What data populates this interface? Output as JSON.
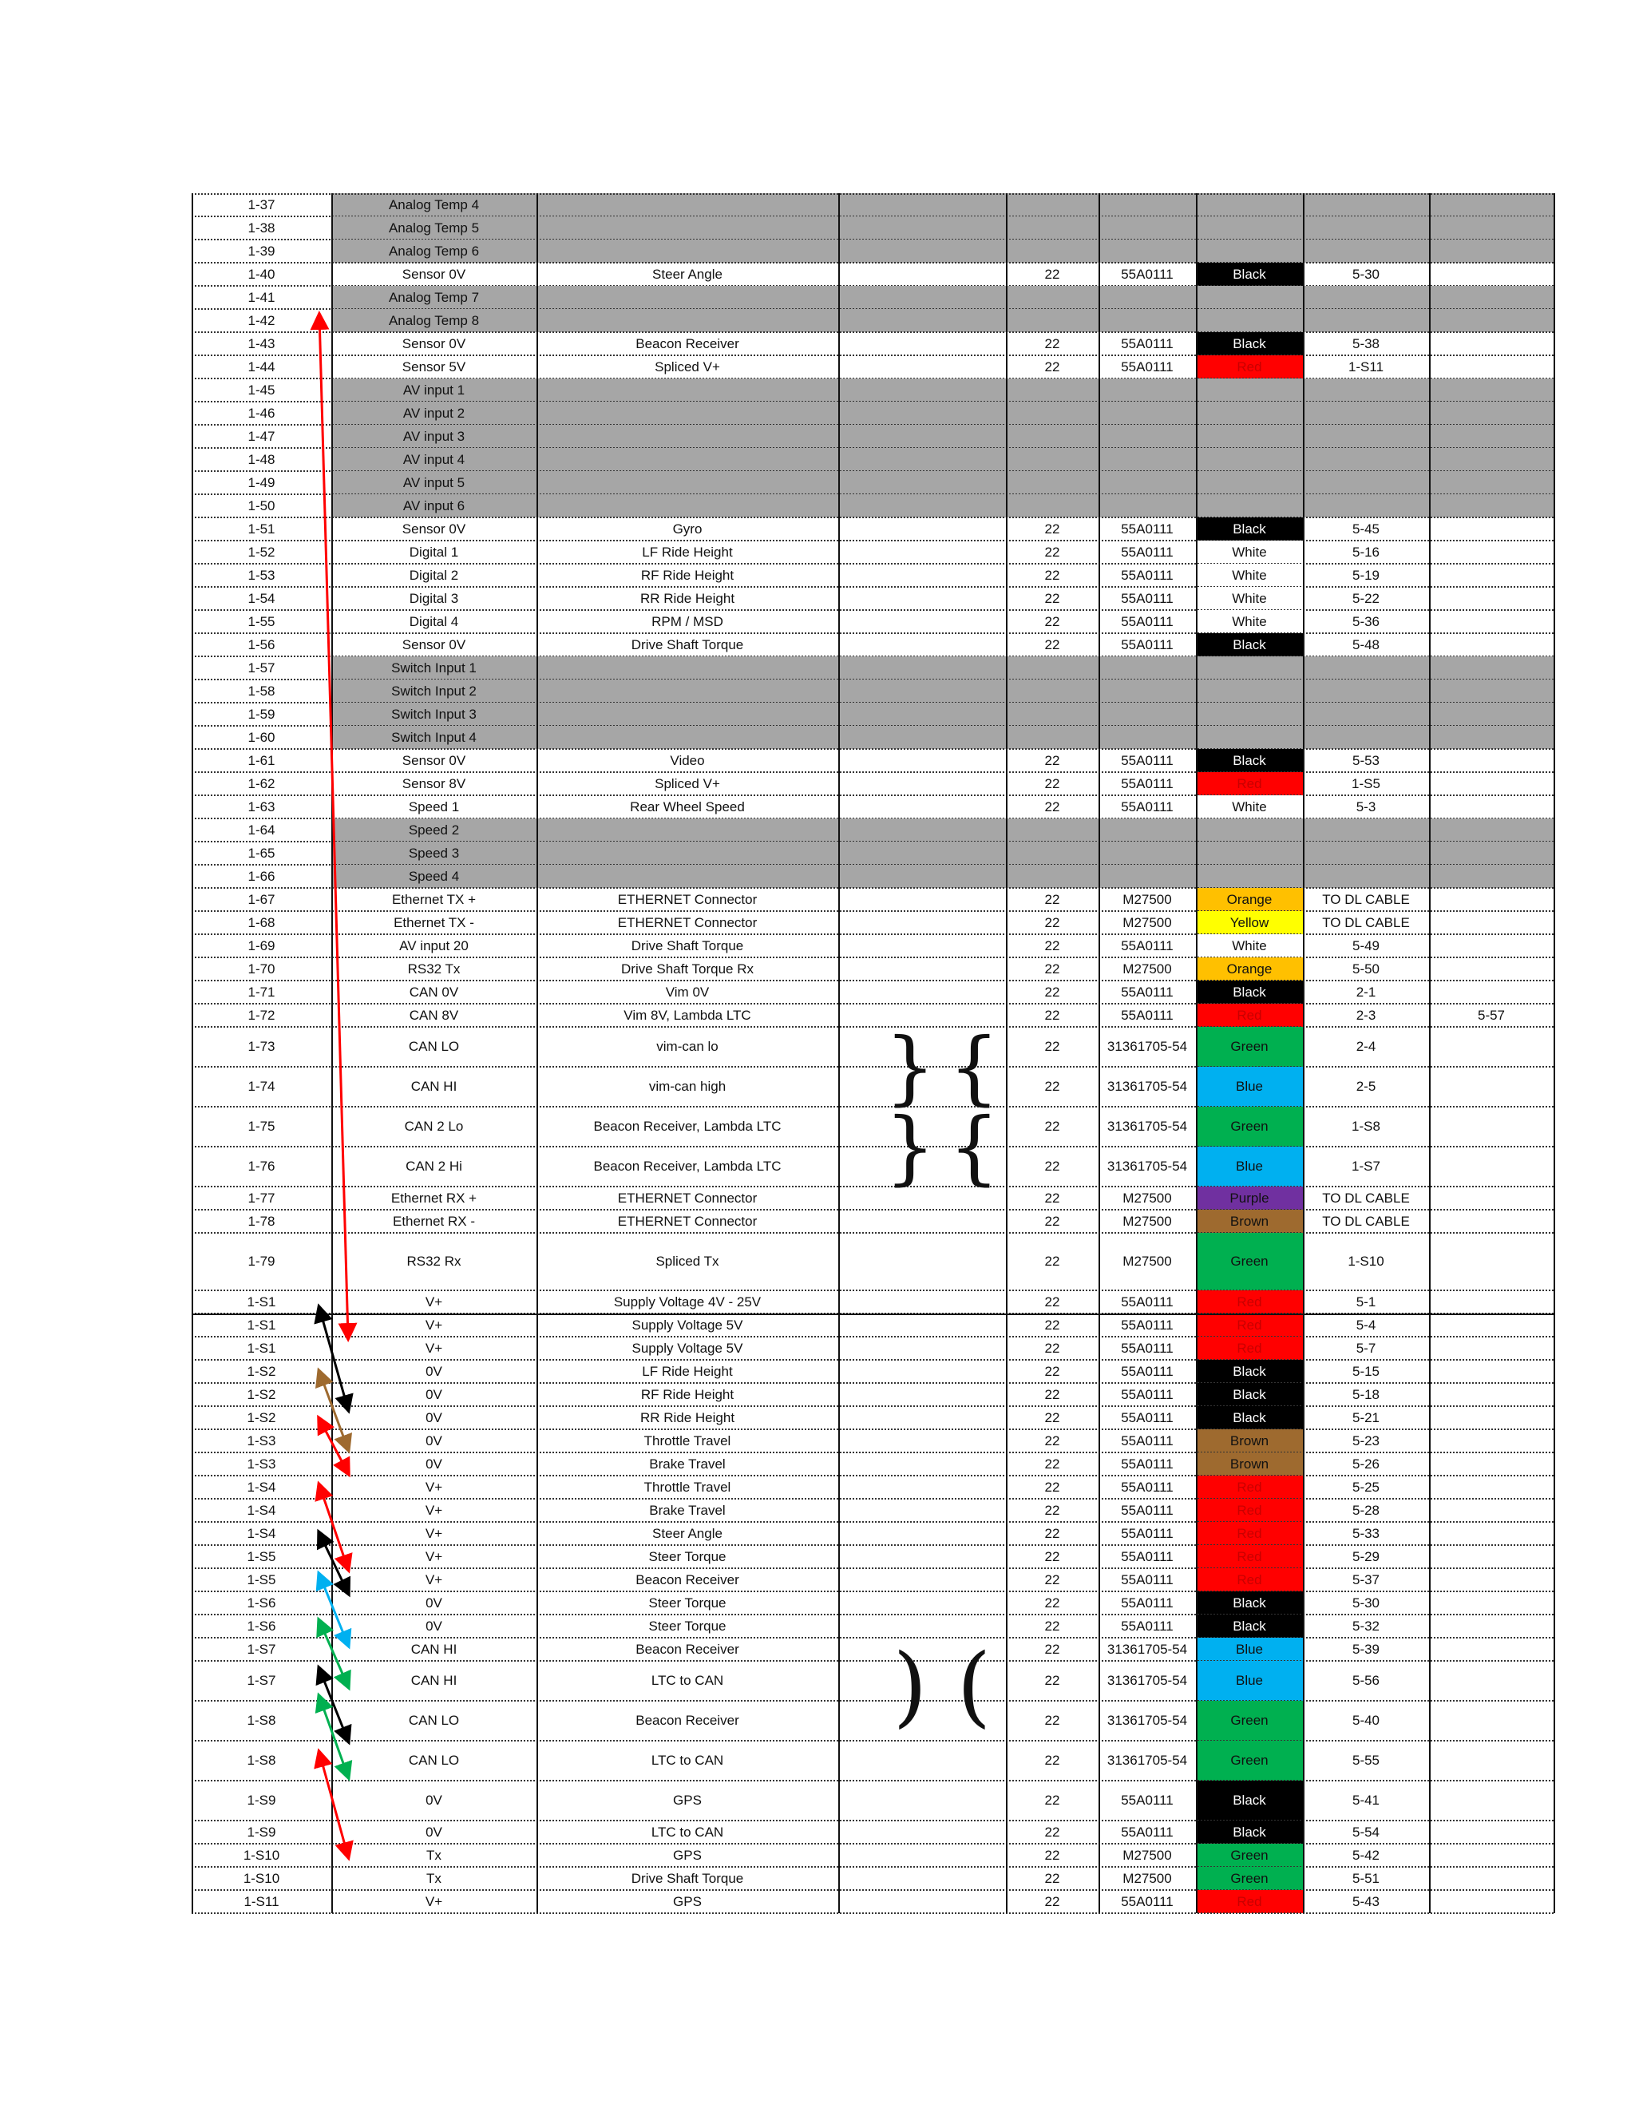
{
  "colors": {
    "Black": {
      "bg": "#000000",
      "fg": "#ffffff"
    },
    "White": {
      "bg": "#ffffff",
      "fg": "#111111"
    },
    "Red": {
      "bg": "#ff0000",
      "fg": "#c80000"
    },
    "Orange": {
      "bg": "#ffc000",
      "fg": "#111111"
    },
    "Yellow": {
      "bg": "#ffff00",
      "fg": "#111111"
    },
    "Green": {
      "bg": "#00b050",
      "fg": "#111111"
    },
    "Blue": {
      "bg": "#00b0f0",
      "fg": "#111111"
    },
    "Purple": {
      "bg": "#7030a0",
      "fg": "#111111"
    },
    "Brown": {
      "bg": "#9e6a2f",
      "fg": "#111111"
    }
  },
  "rows": [
    {
      "pin": "1-37",
      "func": "Analog Temp 4",
      "dest": "",
      "gauge": "",
      "part": "",
      "color": "",
      "to": "",
      "extra": "",
      "gray": true
    },
    {
      "pin": "1-38",
      "func": "Analog Temp 5",
      "dest": "",
      "gauge": "",
      "part": "",
      "color": "",
      "to": "",
      "extra": "",
      "gray": true
    },
    {
      "pin": "1-39",
      "func": "Analog Temp 6",
      "dest": "",
      "gauge": "",
      "part": "",
      "color": "",
      "to": "",
      "extra": "",
      "gray": true
    },
    {
      "pin": "1-40",
      "func": "Sensor 0V",
      "dest": "Steer Angle",
      "gauge": "22",
      "part": "55A0111",
      "color": "Black",
      "to": "5-30",
      "extra": "",
      "gray": false
    },
    {
      "pin": "1-41",
      "func": "Analog Temp 7",
      "dest": "",
      "gauge": "",
      "part": "",
      "color": "",
      "to": "",
      "extra": "",
      "gray": true
    },
    {
      "pin": "1-42",
      "func": "Analog Temp 8",
      "dest": "",
      "gauge": "",
      "part": "",
      "color": "",
      "to": "",
      "extra": "",
      "gray": true
    },
    {
      "pin": "1-43",
      "func": "Sensor 0V",
      "dest": "Beacon Receiver",
      "gauge": "22",
      "part": "55A0111",
      "color": "Black",
      "to": "5-38",
      "extra": "",
      "gray": false
    },
    {
      "pin": "1-44",
      "func": "Sensor 5V",
      "dest": "Spliced V+",
      "gauge": "22",
      "part": "55A0111",
      "color": "Red",
      "to": "1-S11",
      "extra": "",
      "gray": false
    },
    {
      "pin": "1-45",
      "func": "AV input 1",
      "dest": "",
      "gauge": "",
      "part": "",
      "color": "",
      "to": "",
      "extra": "",
      "gray": true
    },
    {
      "pin": "1-46",
      "func": "AV input 2",
      "dest": "",
      "gauge": "",
      "part": "",
      "color": "",
      "to": "",
      "extra": "",
      "gray": true
    },
    {
      "pin": "1-47",
      "func": "AV input 3",
      "dest": "",
      "gauge": "",
      "part": "",
      "color": "",
      "to": "",
      "extra": "",
      "gray": true
    },
    {
      "pin": "1-48",
      "func": "AV input 4",
      "dest": "",
      "gauge": "",
      "part": "",
      "color": "",
      "to": "",
      "extra": "",
      "gray": true
    },
    {
      "pin": "1-49",
      "func": "AV input 5",
      "dest": "",
      "gauge": "",
      "part": "",
      "color": "",
      "to": "",
      "extra": "",
      "gray": true
    },
    {
      "pin": "1-50",
      "func": "AV input 6",
      "dest": "",
      "gauge": "",
      "part": "",
      "color": "",
      "to": "",
      "extra": "",
      "gray": true
    },
    {
      "pin": "1-51",
      "func": "Sensor 0V",
      "dest": "Gyro",
      "gauge": "22",
      "part": "55A0111",
      "color": "Black",
      "to": "5-45",
      "extra": "",
      "gray": false
    },
    {
      "pin": "1-52",
      "func": "Digital 1",
      "dest": "LF Ride Height",
      "gauge": "22",
      "part": "55A0111",
      "color": "White",
      "to": "5-16",
      "extra": "",
      "gray": false
    },
    {
      "pin": "1-53",
      "func": "Digital 2",
      "dest": "RF Ride Height",
      "gauge": "22",
      "part": "55A0111",
      "color": "White",
      "to": "5-19",
      "extra": "",
      "gray": false
    },
    {
      "pin": "1-54",
      "func": "Digital 3",
      "dest": "RR Ride Height",
      "gauge": "22",
      "part": "55A0111",
      "color": "White",
      "to": "5-22",
      "extra": "",
      "gray": false
    },
    {
      "pin": "1-55",
      "func": "Digital 4",
      "dest": "RPM / MSD",
      "gauge": "22",
      "part": "55A0111",
      "color": "White",
      "to": "5-36",
      "extra": "",
      "gray": false
    },
    {
      "pin": "1-56",
      "func": "Sensor 0V",
      "dest": "Drive Shaft Torque",
      "gauge": "22",
      "part": "55A0111",
      "color": "Black",
      "to": "5-48",
      "extra": "",
      "gray": false
    },
    {
      "pin": "1-57",
      "func": "Switch Input 1",
      "dest": "",
      "gauge": "",
      "part": "",
      "color": "",
      "to": "",
      "extra": "",
      "gray": true
    },
    {
      "pin": "1-58",
      "func": "Switch Input 2",
      "dest": "",
      "gauge": "",
      "part": "",
      "color": "",
      "to": "",
      "extra": "",
      "gray": true
    },
    {
      "pin": "1-59",
      "func": "Switch Input 3",
      "dest": "",
      "gauge": "",
      "part": "",
      "color": "",
      "to": "",
      "extra": "",
      "gray": true
    },
    {
      "pin": "1-60",
      "func": "Switch Input 4",
      "dest": "",
      "gauge": "",
      "part": "",
      "color": "",
      "to": "",
      "extra": "",
      "gray": true
    },
    {
      "pin": "1-61",
      "func": "Sensor 0V",
      "dest": "Video",
      "gauge": "22",
      "part": "55A0111",
      "color": "Black",
      "to": "5-53",
      "extra": "",
      "gray": false
    },
    {
      "pin": "1-62",
      "func": "Sensor 8V",
      "dest": "Spliced V+",
      "gauge": "22",
      "part": "55A0111",
      "color": "Red",
      "to": "1-S5",
      "extra": "",
      "gray": false
    },
    {
      "pin": "1-63",
      "func": "Speed 1",
      "dest": "Rear Wheel Speed",
      "gauge": "22",
      "part": "55A0111",
      "color": "White",
      "to": "5-3",
      "extra": "",
      "gray": false
    },
    {
      "pin": "1-64",
      "func": "Speed 2",
      "dest": "",
      "gauge": "",
      "part": "",
      "color": "",
      "to": "",
      "extra": "",
      "gray": true
    },
    {
      "pin": "1-65",
      "func": "Speed 3",
      "dest": "",
      "gauge": "",
      "part": "",
      "color": "",
      "to": "",
      "extra": "",
      "gray": true
    },
    {
      "pin": "1-66",
      "func": "Speed 4",
      "dest": "",
      "gauge": "",
      "part": "",
      "color": "",
      "to": "",
      "extra": "",
      "gray": true
    },
    {
      "pin": "1-67",
      "func": "Ethernet TX +",
      "dest": "ETHERNET Connector",
      "gauge": "22",
      "part": "M27500",
      "color": "Orange",
      "to": "TO DL CABLE",
      "extra": "",
      "gray": false
    },
    {
      "pin": "1-68",
      "func": "Ethernet TX -",
      "dest": "ETHERNET Connector",
      "gauge": "22",
      "part": "M27500",
      "color": "Yellow",
      "to": "TO DL CABLE",
      "extra": "",
      "gray": false
    },
    {
      "pin": "1-69",
      "func": "AV input 20",
      "dest": "Drive Shaft Torque",
      "gauge": "22",
      "part": "55A0111",
      "color": "White",
      "to": "5-49",
      "extra": "",
      "gray": false
    },
    {
      "pin": "1-70",
      "func": "RS32 Tx",
      "dest": "Drive Shaft Torque Rx",
      "gauge": "22",
      "part": "M27500",
      "color": "Orange",
      "to": "5-50",
      "extra": "",
      "gray": false
    },
    {
      "pin": "1-71",
      "func": "CAN 0V",
      "dest": "Vim  0V",
      "gauge": "22",
      "part": "55A0111",
      "color": "Black",
      "to": "2-1",
      "extra": "",
      "gray": false
    },
    {
      "pin": "1-72",
      "func": "CAN 8V",
      "dest": "Vim 8V, Lambda LTC",
      "gauge": "22",
      "part": "55A0111",
      "color": "Red",
      "to": "2-3",
      "extra": "5-57",
      "gray": false
    },
    {
      "pin": "1-73",
      "func": "CAN LO",
      "dest": "vim-can  lo",
      "gauge": "22",
      "part": "31361705-54",
      "color": "Green",
      "to": "2-4",
      "extra": "",
      "gray": false
    },
    {
      "pin": "1-74",
      "func": "CAN HI",
      "dest": "vim-can  high",
      "gauge": "22",
      "part": "31361705-54",
      "color": "Blue",
      "to": "2-5",
      "extra": "",
      "gray": false
    },
    {
      "pin": "1-75",
      "func": "CAN 2 Lo",
      "dest": "Beacon Receiver, Lambda LTC",
      "gauge": "22",
      "part": "31361705-54",
      "color": "Green",
      "to": "1-S8",
      "extra": "",
      "gray": false
    },
    {
      "pin": "1-76",
      "func": "CAN 2 Hi",
      "dest": "Beacon Receiver, Lambda LTC",
      "gauge": "22",
      "part": "31361705-54",
      "color": "Blue",
      "to": "1-S7",
      "extra": "",
      "gray": false
    },
    {
      "pin": "1-77",
      "func": "Ethernet RX +",
      "dest": "ETHERNET Connector",
      "gauge": "22",
      "part": "M27500",
      "color": "Purple",
      "to": "TO DL CABLE",
      "extra": "",
      "gray": false
    },
    {
      "pin": "1-78",
      "func": "Ethernet RX -",
      "dest": "ETHERNET Connector",
      "gauge": "22",
      "part": "M27500",
      "color": "Brown",
      "to": "TO DL CABLE",
      "extra": "",
      "gray": false
    },
    {
      "pin": "1-79",
      "func": "RS32 Rx",
      "dest": "Spliced Tx",
      "gauge": "22",
      "part": "M27500",
      "color": "Green",
      "to": "1-S10",
      "extra": "",
      "gray": false
    },
    {
      "pin": "1-S1",
      "func": "V+",
      "dest": "Supply Voltage 4V - 25V",
      "gauge": "22",
      "part": "55A0111",
      "color": "Red",
      "to": "5-1",
      "extra": "",
      "gray": false
    },
    {
      "pin": "1-S1",
      "func": "V+",
      "dest": "Supply Voltage 5V",
      "gauge": "22",
      "part": "55A0111",
      "color": "Red",
      "to": "5-4",
      "extra": "",
      "gray": false
    },
    {
      "pin": "1-S1",
      "func": "V+",
      "dest": "Supply Voltage 5V",
      "gauge": "22",
      "part": "55A0111",
      "color": "Red",
      "to": "5-7",
      "extra": "",
      "gray": false
    },
    {
      "pin": "1-S2",
      "func": "0V",
      "dest": "LF Ride Height",
      "gauge": "22",
      "part": "55A0111",
      "color": "Black",
      "to": "5-15",
      "extra": "",
      "gray": false
    },
    {
      "pin": "1-S2",
      "func": "0V",
      "dest": "RF Ride Height",
      "gauge": "22",
      "part": "55A0111",
      "color": "Black",
      "to": "5-18",
      "extra": "",
      "gray": false
    },
    {
      "pin": "1-S2",
      "func": "0V",
      "dest": "RR Ride Height",
      "gauge": "22",
      "part": "55A0111",
      "color": "Black",
      "to": "5-21",
      "extra": "",
      "gray": false
    },
    {
      "pin": "1-S3",
      "func": "0V",
      "dest": "Throttle Travel",
      "gauge": "22",
      "part": "55A0111",
      "color": "Brown",
      "to": "5-23",
      "extra": "",
      "gray": false
    },
    {
      "pin": "1-S3",
      "func": "0V",
      "dest": "Brake Travel",
      "gauge": "22",
      "part": "55A0111",
      "color": "Brown",
      "to": "5-26",
      "extra": "",
      "gray": false
    },
    {
      "pin": "1-S4",
      "func": "V+",
      "dest": "Throttle Travel",
      "gauge": "22",
      "part": "55A0111",
      "color": "Red",
      "to": "5-25",
      "extra": "",
      "gray": false
    },
    {
      "pin": "1-S4",
      "func": "V+",
      "dest": "Brake Travel",
      "gauge": "22",
      "part": "55A0111",
      "color": "Red",
      "to": "5-28",
      "extra": "",
      "gray": false
    },
    {
      "pin": "1-S4",
      "func": "V+",
      "dest": "Steer Angle",
      "gauge": "22",
      "part": "55A0111",
      "color": "Red",
      "to": "5-33",
      "extra": "",
      "gray": false
    },
    {
      "pin": "1-S5",
      "func": "V+",
      "dest": "Steer Torque",
      "gauge": "22",
      "part": "55A0111",
      "color": "Red",
      "to": "5-29",
      "extra": "",
      "gray": false
    },
    {
      "pin": "1-S5",
      "func": "V+",
      "dest": "Beacon Receiver",
      "gauge": "22",
      "part": "55A0111",
      "color": "Red",
      "to": "5-37",
      "extra": "",
      "gray": false
    },
    {
      "pin": "1-S6",
      "func": "0V",
      "dest": "Steer Torque",
      "gauge": "22",
      "part": "55A0111",
      "color": "Black",
      "to": "5-30",
      "extra": "",
      "gray": false
    },
    {
      "pin": "1-S6",
      "func": "0V",
      "dest": "Steer Torque",
      "gauge": "22",
      "part": "55A0111",
      "color": "Black",
      "to": "5-32",
      "extra": "",
      "gray": false
    },
    {
      "pin": "1-S7",
      "func": "CAN HI",
      "dest": "Beacon Receiver",
      "gauge": "22",
      "part": "31361705-54",
      "color": "Blue",
      "to": "5-39",
      "extra": "",
      "gray": false
    },
    {
      "pin": "1-S7",
      "func": "CAN HI",
      "dest": "LTC to CAN",
      "gauge": "22",
      "part": "31361705-54",
      "color": "Blue",
      "to": "5-56",
      "extra": "",
      "gray": false
    },
    {
      "pin": "1-S8",
      "func": "CAN LO",
      "dest": "Beacon Receiver",
      "gauge": "22",
      "part": "31361705-54",
      "color": "Green",
      "to": "5-40",
      "extra": "",
      "gray": false
    },
    {
      "pin": "1-S8",
      "func": "CAN LO",
      "dest": "LTC to CAN",
      "gauge": "22",
      "part": "31361705-54",
      "color": "Green",
      "to": "5-55",
      "extra": "",
      "gray": false
    },
    {
      "pin": "1-S9",
      "func": "0V",
      "dest": "GPS",
      "gauge": "22",
      "part": "55A0111",
      "color": "Black",
      "to": "5-41",
      "extra": "",
      "gray": false
    },
    {
      "pin": "1-S9",
      "func": "0V",
      "dest": "LTC to CAN",
      "gauge": "22",
      "part": "55A0111",
      "color": "Black",
      "to": "5-54",
      "extra": "",
      "gray": false
    },
    {
      "pin": "1-S10",
      "func": "Tx",
      "dest": "GPS",
      "gauge": "22",
      "part": "M27500",
      "color": "Green",
      "to": "5-42",
      "extra": "",
      "gray": false
    },
    {
      "pin": "1-S10",
      "func": "Tx",
      "dest": "Drive Shaft Torque",
      "gauge": "22",
      "part": "M27500",
      "color": "Green",
      "to": "5-51",
      "extra": "",
      "gray": false
    },
    {
      "pin": "1-S11",
      "func": "V+",
      "dest": "GPS",
      "gauge": "22",
      "part": "55A0111",
      "color": "Red",
      "to": "5-43",
      "extra": "",
      "gray": false
    }
  ],
  "twist_brackets": [
    {
      "rows": [
        "1-73",
        "1-76"
      ],
      "glyph_left": "}",
      "glyph_right": "{"
    },
    {
      "rows": [
        "1-73",
        "1-74"
      ],
      "glyph_left": "}",
      "glyph_right": "{"
    },
    {
      "rows": [
        "1-75",
        "1-76"
      ],
      "glyph_left": "}",
      "glyph_right": "{"
    },
    {
      "rows": [
        "1-S7",
        "1-S8"
      ],
      "glyph_left": ")",
      "glyph_right": "("
    }
  ],
  "splice_arrows": [
    {
      "color": "Red"
    },
    {
      "color": "Black"
    },
    {
      "color": "Brown"
    },
    {
      "color": "Red"
    },
    {
      "color": "Red"
    },
    {
      "color": "Black"
    },
    {
      "color": "Blue"
    },
    {
      "color": "Green"
    },
    {
      "color": "Black"
    },
    {
      "color": "Green"
    },
    {
      "color": "Red"
    }
  ]
}
